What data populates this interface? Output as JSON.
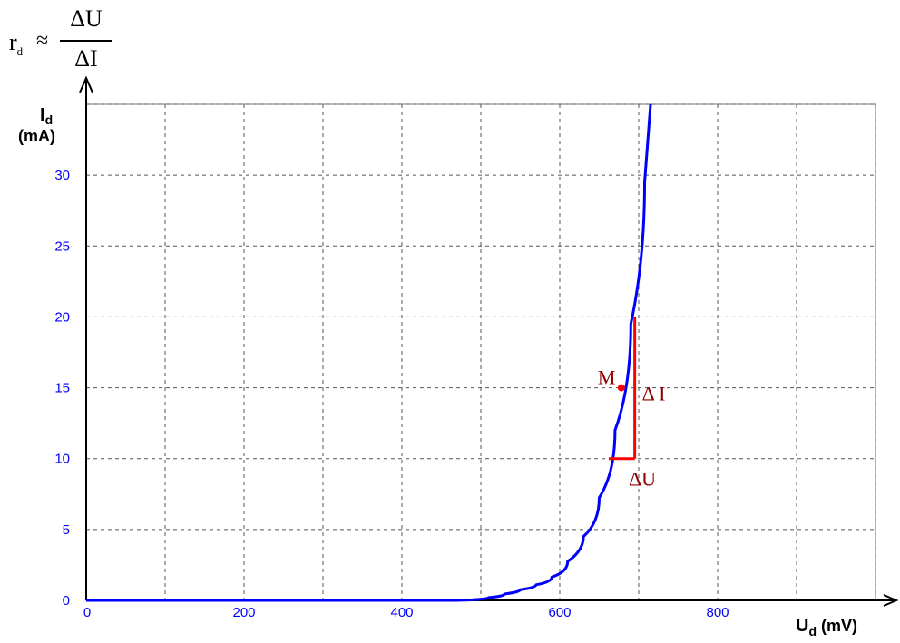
{
  "formula": {
    "lhs": "r",
    "lhs_sub": "d",
    "approx": "≈",
    "numerator": "ΔU",
    "denominator": "ΔI"
  },
  "chart_data": {
    "type": "line",
    "title": "",
    "xlabel": {
      "main": "U",
      "sub": "d",
      "unit": "(mV)"
    },
    "ylabel": {
      "main": "I",
      "sub": "d",
      "unit": "(mA)"
    },
    "xlim": [
      0,
      1000
    ],
    "ylim": [
      0,
      35
    ],
    "xticks": [
      0,
      200,
      400,
      600,
      800
    ],
    "yticks": [
      0,
      5,
      10,
      15,
      20,
      25,
      30
    ],
    "xgrid": [
      0,
      100,
      200,
      300,
      400,
      500,
      600,
      700,
      800,
      900,
      1000
    ],
    "ygrid": [
      0,
      5,
      10,
      15,
      20,
      25,
      30,
      35
    ],
    "grid": true,
    "curve_color": "#0000ff",
    "annotation_color": "#ff0000",
    "series": [
      {
        "x": [
          0,
          100,
          200,
          300,
          400,
          480,
          500,
          520,
          540,
          560,
          580,
          600,
          620,
          640,
          660,
          680,
          700,
          715
        ],
        "y": [
          0,
          0,
          0,
          0,
          0,
          0,
          0.1,
          0.3,
          0.6,
          0.9,
          1.3,
          2.0,
          3.5,
          5.5,
          9.0,
          15.0,
          24.0,
          35.0
        ]
      }
    ],
    "annotations": {
      "point": {
        "label": "M",
        "x": 678,
        "y": 15
      },
      "delta_i": {
        "label": "Δ I",
        "x": 695,
        "y_from": 10,
        "y_to": 20
      },
      "delta_u": {
        "label": "ΔU",
        "x_from": 662,
        "x_to": 695,
        "y": 10
      }
    }
  }
}
